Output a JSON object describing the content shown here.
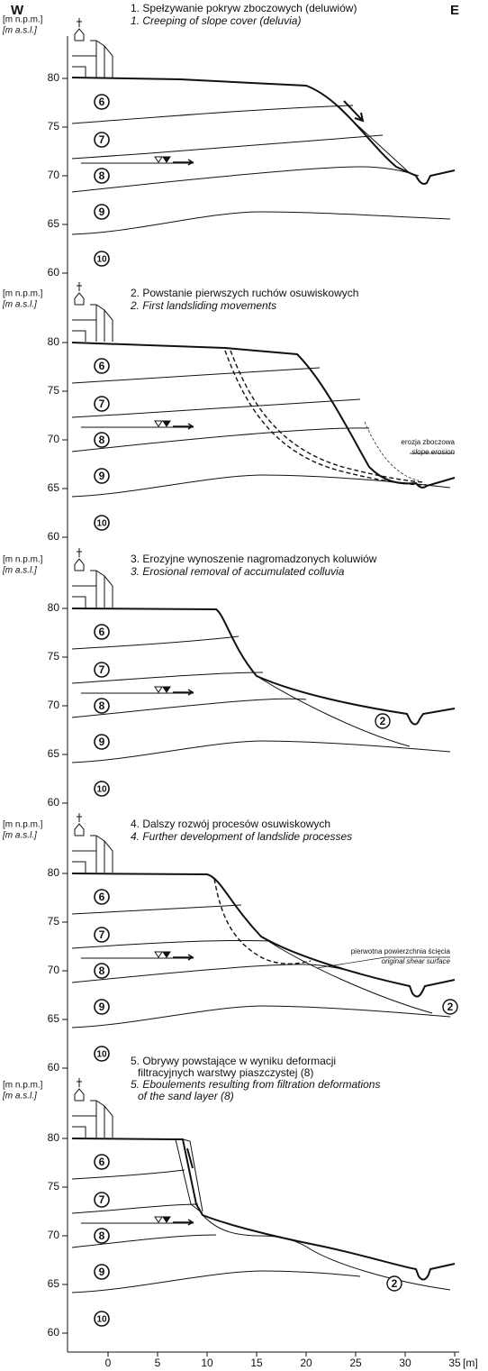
{
  "header": {
    "west": "W",
    "east": "E"
  },
  "panels": [
    {
      "unit_pl": "[m n.p.m.]",
      "unit_en": "[m a.s.l.]",
      "title_pl": [
        "1. Spełzywanie pokryw zboczowych (deluwiów)"
      ],
      "title_en": [
        "1. Creeping of slope cover (deluvia)"
      ],
      "yticks": [
        80,
        75,
        70,
        65,
        60
      ],
      "layers": [
        "6",
        "7",
        "8",
        "9",
        "10"
      ]
    },
    {
      "unit_pl": "[m n.p.m.]",
      "unit_en": "[m a.s.l.]",
      "title_pl": [
        "2. Powstanie pierwszych ruchów osuwiskowych"
      ],
      "title_en": [
        "2. First landsliding movements"
      ],
      "yticks": [
        80,
        75,
        70,
        65,
        60
      ],
      "layers": [
        "6",
        "7",
        "8",
        "9",
        "10"
      ],
      "annotation_pl": "erozja zboczowa",
      "annotation_en": "slope erosion"
    },
    {
      "unit_pl": "[m n.p.m.]",
      "unit_en": "[m a.s.l.]",
      "title_pl": [
        "3. Erozyjne wynoszenie nagromadzonych koluwiów"
      ],
      "title_en": [
        "3. Erosional removal of accumulated colluvia"
      ],
      "yticks": [
        80,
        75,
        70,
        65,
        60
      ],
      "layers": [
        "6",
        "7",
        "8",
        "9",
        "10"
      ],
      "marker": "2"
    },
    {
      "unit_pl": "[m n.p.m.]",
      "unit_en": "[m a.s.l.]",
      "title_pl": [
        "4. Dalszy rozwój procesów osuwiskowych"
      ],
      "title_en": [
        "4. Further development of landslide processes"
      ],
      "yticks": [
        80,
        75,
        70,
        65,
        60
      ],
      "layers": [
        "6",
        "7",
        "8",
        "9",
        "10"
      ],
      "marker": "2",
      "annotation_pl": "pierwotna powierzchnia ścięcia",
      "annotation_en": "original shear surface"
    },
    {
      "unit_pl": "[m n.p.m.]",
      "unit_en": "[m a.s.l.]",
      "title_pl": [
        "5. Obrywy powstające w wyniku deformacji",
        "filtracyjnych warstwy piaszczystej (8)"
      ],
      "title_en": [
        "5. Eboulements resulting from filtration deformations",
        "of the sand layer (8)"
      ],
      "yticks": [
        80,
        75,
        70,
        65,
        60
      ],
      "layers": [
        "6",
        "7",
        "8",
        "9",
        "10"
      ],
      "marker": "2"
    }
  ],
  "x_axis": {
    "ticks": [
      0,
      5,
      10,
      15,
      20,
      25,
      30,
      35
    ],
    "unit": "[m]"
  }
}
